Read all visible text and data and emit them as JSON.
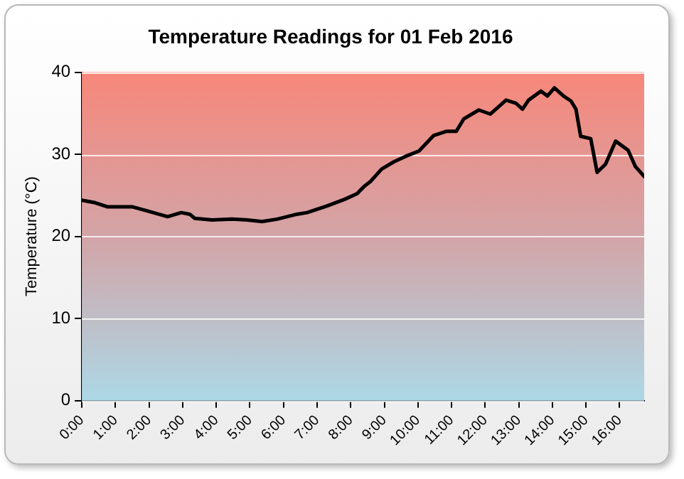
{
  "chart_data": {
    "type": "line",
    "title": "Temperature Readings for 01 Feb 2016",
    "ylabel": "Temperature (°C)",
    "x": [
      0,
      0.4,
      0.77,
      1.51,
      2.03,
      2.55,
      2.96,
      3.21,
      3.36,
      3.88,
      4.47,
      4.92,
      5.36,
      5.81,
      6.4,
      6.7,
      7.29,
      7.81,
      8.19,
      8.4,
      8.59,
      8.92,
      9.29,
      9.66,
      10.03,
      10.47,
      10.84,
      11.14,
      11.36,
      11.81,
      12.15,
      12.62,
      12.92,
      13.11,
      13.29,
      13.66,
      13.85,
      14.06,
      14.33,
      14.55,
      14.7,
      14.84,
      15.14,
      15.33,
      15.58,
      15.88,
      16.25,
      16.47,
      16.73
    ],
    "series": [
      {
        "color": "#000000",
        "values": [
          24.4,
          24.1,
          23.6,
          23.6,
          23.0,
          22.4,
          22.9,
          22.7,
          22.2,
          22.0,
          22.1,
          22.0,
          21.8,
          22.1,
          22.7,
          22.9,
          23.7,
          24.5,
          25.2,
          26.1,
          26.7,
          28.2,
          29.1,
          29.8,
          30.4,
          32.3,
          32.8,
          32.8,
          34.3,
          35.4,
          34.9,
          36.6,
          36.2,
          35.5,
          36.6,
          37.7,
          37.1,
          38.1,
          37.1,
          36.5,
          35.5,
          32.2,
          31.9,
          27.8,
          28.8,
          31.6,
          30.5,
          28.5,
          27.3
        ]
      }
    ],
    "xlim": [
      0,
      16.73
    ],
    "xticks": [
      {
        "value": 0,
        "label": "0:00"
      },
      {
        "value": 1,
        "label": "1:00"
      },
      {
        "value": 2,
        "label": "2:00"
      },
      {
        "value": 3,
        "label": "3:00"
      },
      {
        "value": 4,
        "label": "4:00"
      },
      {
        "value": 5,
        "label": "5:00"
      },
      {
        "value": 6,
        "label": "6:00"
      },
      {
        "value": 7,
        "label": "7:00"
      },
      {
        "value": 8,
        "label": "8:00"
      },
      {
        "value": 9,
        "label": "9:00"
      },
      {
        "value": 10,
        "label": "10:00"
      },
      {
        "value": 11,
        "label": "11:00"
      },
      {
        "value": 12,
        "label": "12:00"
      },
      {
        "value": 13,
        "label": "13:00"
      },
      {
        "value": 14,
        "label": "14:00"
      },
      {
        "value": 15,
        "label": "15:00"
      },
      {
        "value": 16,
        "label": "16:00"
      }
    ],
    "ylim": [
      0,
      40
    ],
    "yticks": [
      0,
      10,
      20,
      30,
      40
    ],
    "grid": "y",
    "legend": false,
    "marker": "none",
    "line_style": "solid"
  }
}
